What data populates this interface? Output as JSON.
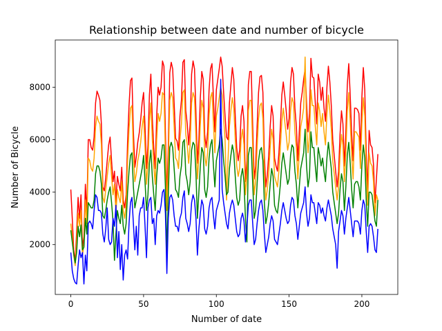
{
  "chart_data": {
    "type": "line",
    "title": "Relationship between date and number of bicycle",
    "xlabel": "Number of date",
    "ylabel": "Number of Bicycle",
    "xlim": [
      -10.7,
      224.7
    ],
    "ylim": [
      100,
      9800
    ],
    "x_ticks": [
      0,
      50,
      100,
      150,
      200
    ],
    "y_ticks": [
      2000,
      4000,
      6000,
      8000
    ],
    "grid": false,
    "legend": "none",
    "x_start": 0,
    "x_step": 1,
    "series": [
      {
        "color": "#ff0000",
        "values": [
          4100,
          3000,
          1800,
          1350,
          2500,
          3800,
          3000,
          3900,
          1900,
          2300,
          4300,
          3200,
          6000,
          6000,
          5700,
          5600,
          6100,
          7400,
          7850,
          7700,
          7500,
          6600,
          4200,
          4050,
          4550,
          5200,
          5800,
          6100,
          5200,
          4400,
          4800,
          3600,
          4600,
          4300,
          4050,
          4950,
          3700,
          3400,
          3900,
          5900,
          7300,
          8250,
          8350,
          6300,
          4950,
          5350,
          5900,
          6250,
          6750,
          7400,
          7800,
          6500,
          4900,
          5800,
          7700,
          8500,
          6800,
          5700,
          4900,
          6900,
          8000,
          7700,
          8000,
          9000,
          8800,
          6300,
          3800,
          5800,
          8550,
          8950,
          8700,
          7400,
          6050,
          5950,
          5600,
          6900,
          7500,
          8950,
          9050,
          7100,
          6600,
          5800,
          6600,
          8500,
          9000,
          8700,
          7000,
          5100,
          6000,
          7600,
          8600,
          8300,
          6200,
          5700,
          6300,
          7900,
          8700,
          8900,
          7600,
          6300,
          7900,
          8300,
          8700,
          9150,
          8800,
          7800,
          6900,
          6100,
          6000,
          7400,
          8100,
          8750,
          8300,
          6900,
          5700,
          5200,
          5600,
          6900,
          7300,
          6700,
          4400,
          5200,
          8100,
          8600,
          8600,
          6500,
          4500,
          5000,
          6500,
          7800,
          8400,
          8450,
          7800,
          5400,
          4200,
          4650,
          5400,
          6500,
          7300,
          6900,
          5300,
          5000,
          4800,
          5500,
          6500,
          7700,
          8200,
          7700,
          7100,
          6400,
          6800,
          8200,
          8750,
          8500,
          7200,
          6500,
          5200,
          6300,
          7400,
          7800,
          8300,
          8700,
          7400,
          6300,
          7000,
          9100,
          8400,
          8350,
          7400,
          6600,
          8500,
          8200,
          7500,
          8000,
          7200,
          6700,
          8000,
          8800,
          8200,
          7300,
          6000,
          5400,
          4800,
          4200,
          4800,
          6200,
          7100,
          6600,
          5000,
          6300,
          8100,
          8900,
          7700,
          6200,
          5200,
          7200,
          7200,
          7150,
          7000,
          5600,
          7600,
          8750,
          7900,
          5500,
          4000,
          6350,
          5800,
          5700,
          5050,
          3600,
          4500,
          5450
        ]
      },
      {
        "color": "#ffa500",
        "values": [
          2800,
          2300,
          1600,
          1200,
          2100,
          3200,
          2700,
          3300,
          1600,
          2000,
          3700,
          2800,
          5300,
          5200,
          4900,
          4800,
          5300,
          6500,
          6900,
          6700,
          6600,
          5800,
          3800,
          3600,
          4100,
          4600,
          5100,
          5400,
          4600,
          3900,
          4300,
          3200,
          4100,
          3800,
          3600,
          4400,
          3300,
          3000,
          3500,
          5200,
          6400,
          7200,
          7300,
          5500,
          4400,
          4700,
          5200,
          5500,
          5900,
          6500,
          6900,
          5700,
          4300,
          5100,
          6700,
          7400,
          6000,
          5000,
          4300,
          6000,
          7000,
          6700,
          7000,
          7800,
          7700,
          5500,
          3300,
          5100,
          7500,
          7800,
          7600,
          6500,
          5300,
          5200,
          4900,
          6000,
          6600,
          7800,
          7900,
          6200,
          5800,
          5100,
          5800,
          7400,
          7800,
          7600,
          6100,
          4500,
          5300,
          6600,
          7500,
          7200,
          5400,
          5000,
          5500,
          6900,
          7600,
          7800,
          6600,
          5500,
          6900,
          7200,
          7600,
          8000,
          7700,
          6800,
          6000,
          3700,
          5200,
          6500,
          7100,
          7600,
          7200,
          6000,
          5000,
          4600,
          4900,
          6000,
          6400,
          5800,
          3900,
          4600,
          7100,
          7500,
          7500,
          5700,
          3900,
          4400,
          5700,
          6800,
          7300,
          7400,
          6800,
          4700,
          3700,
          4100,
          4700,
          5700,
          6400,
          6000,
          4600,
          4400,
          4200,
          4800,
          5700,
          6700,
          7200,
          6700,
          6200,
          5600,
          5900,
          7100,
          7600,
          7400,
          6300,
          5700,
          4500,
          5500,
          6500,
          6800,
          7200,
          9150,
          6500,
          5500,
          6100,
          7900,
          7300,
          7300,
          6500,
          5800,
          7400,
          7100,
          6500,
          7000,
          6300,
          5800,
          7000,
          7700,
          7100,
          6400,
          5200,
          4700,
          4200,
          3700,
          4200,
          5400,
          6200,
          5800,
          4400,
          5500,
          7100,
          7800,
          6700,
          5400,
          4500,
          6300,
          6300,
          6200,
          6100,
          4900,
          6600,
          7600,
          6900,
          4800,
          3500,
          5500,
          5100,
          5000,
          4400,
          3100,
          3900,
          3700
        ]
      },
      {
        "color": "#008000",
        "values": [
          2550,
          2100,
          1650,
          1300,
          1700,
          2700,
          2300,
          2750,
          1800,
          1900,
          3000,
          2400,
          3600,
          3500,
          3400,
          3400,
          3700,
          4700,
          5000,
          5000,
          4800,
          4300,
          3100,
          3000,
          3300,
          3700,
          4000,
          4200,
          3600,
          2900,
          1400,
          2400,
          3300,
          3000,
          2800,
          3500,
          2700,
          2400,
          2800,
          4000,
          4800,
          5400,
          5500,
          4200,
          3400,
          3700,
          4000,
          4300,
          4600,
          4900,
          5400,
          4400,
          3300,
          3900,
          5100,
          5600,
          4600,
          3900,
          3300,
          4600,
          5300,
          5100,
          5300,
          5800,
          5800,
          4200,
          1700,
          3900,
          5700,
          5900,
          5700,
          4900,
          4100,
          4000,
          3800,
          4600,
          5000,
          5900,
          6000,
          4700,
          4400,
          3900,
          4400,
          5600,
          5900,
          5800,
          4700,
          3000,
          4000,
          5000,
          5700,
          5500,
          4100,
          3800,
          4200,
          5300,
          5800,
          6000,
          5000,
          4200,
          5200,
          5500,
          5800,
          6400,
          6000,
          5200,
          4600,
          3900,
          4000,
          4900,
          5400,
          5800,
          5500,
          4600,
          3800,
          3500,
          3700,
          4600,
          4900,
          4400,
          3000,
          2100,
          5400,
          5700,
          5700,
          4300,
          3000,
          3300,
          4300,
          5200,
          5600,
          5700,
          5200,
          3600,
          2800,
          3100,
          3600,
          4300,
          4900,
          4600,
          3500,
          3300,
          3200,
          3700,
          4300,
          5100,
          5500,
          5100,
          4700,
          4300,
          4500,
          5400,
          5800,
          5700,
          4800,
          4300,
          3400,
          4200,
          4900,
          5200,
          5500,
          6400,
          5000,
          4200,
          4600,
          6300,
          5700,
          5700,
          5000,
          4400,
          5700,
          5400,
          5000,
          5300,
          4800,
          4400,
          5300,
          5900,
          5400,
          4900,
          4000,
          3600,
          3200,
          2800,
          3200,
          4100,
          4700,
          4400,
          3300,
          4200,
          5400,
          5900,
          5100,
          4100,
          3400,
          4300,
          4400,
          4400,
          4200,
          3700,
          5000,
          5800,
          5300,
          3700,
          2700,
          4000,
          4000,
          3900,
          3400,
          2900,
          2700,
          3700
        ]
      },
      {
        "color": "#0000ff",
        "values": [
          1700,
          1000,
          700,
          550,
          500,
          1200,
          1800,
          1500,
          1700,
          500,
          1600,
          1000,
          2800,
          2900,
          2800,
          2600,
          3300,
          3900,
          3800,
          3300,
          3300,
          3200,
          2400,
          2100,
          2600,
          3400,
          2200,
          2000,
          2100,
          3000,
          2700,
          3500,
          1500,
          2500,
          1050,
          2000,
          650,
          1600,
          1800,
          1450,
          2800,
          3600,
          3800,
          2800,
          1800,
          2700,
          1600,
          3100,
          3400,
          3400,
          3800,
          2700,
          1500,
          3400,
          3700,
          3800,
          2800,
          3000,
          2000,
          3100,
          3300,
          3200,
          3500,
          4000,
          4100,
          3200,
          900,
          3000,
          3800,
          3900,
          3700,
          3100,
          2700,
          2700,
          2500,
          3000,
          3200,
          3800,
          4050,
          3000,
          2800,
          2500,
          2800,
          3600,
          3900,
          3700,
          3000,
          1600,
          2600,
          3200,
          3700,
          3500,
          2600,
          2400,
          2700,
          3400,
          3700,
          3800,
          3100,
          2600,
          3300,
          3500,
          3700,
          8300,
          4100,
          3600,
          3200,
          2800,
          2600,
          3200,
          3500,
          3700,
          3500,
          3000,
          2500,
          2300,
          2400,
          3000,
          3200,
          2900,
          2100,
          2700,
          3500,
          3700,
          3700,
          2800,
          2000,
          2200,
          2800,
          3300,
          3600,
          3700,
          3300,
          2400,
          1700,
          2000,
          2300,
          2800,
          3100,
          2900,
          2200,
          2100,
          2000,
          2400,
          2800,
          3300,
          3600,
          3300,
          3000,
          2800,
          2900,
          3500,
          3800,
          3700,
          3100,
          2800,
          2200,
          2700,
          3200,
          3400,
          3600,
          4200,
          3200,
          2700,
          3000,
          3900,
          3600,
          3600,
          3200,
          2800,
          3600,
          3500,
          3200,
          3400,
          3100,
          2900,
          3400,
          3700,
          3400,
          3100,
          2600,
          2300,
          2000,
          1100,
          2500,
          2900,
          3300,
          3100,
          2400,
          3000,
          3400,
          3800,
          3300,
          2800,
          2300,
          2900,
          2900,
          2900,
          2800,
          2400,
          3300,
          3700,
          3500,
          2500,
          1700,
          2700,
          2800,
          2700,
          2300,
          1800,
          1700,
          2600
        ]
      }
    ]
  }
}
